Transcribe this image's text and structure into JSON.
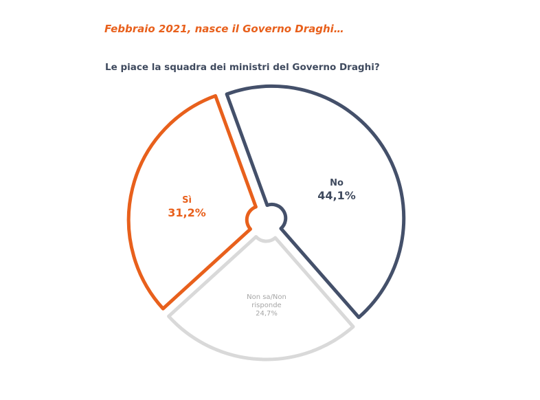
{
  "header": {
    "title": "Febbraio 2021, nasce il Governo Draghi…",
    "subtitle": "Le piace la squadra dei ministri del Governo Draghi?"
  },
  "chart_data": {
    "type": "pie",
    "title": "Le piace la squadra dei ministri del Governo Draghi?",
    "slices": [
      {
        "label": "No",
        "value": 44.1,
        "value_label": "44,1%",
        "color": "#44506a",
        "text_color": "#3f4a5e"
      },
      {
        "label": "Non sa/Non risponde",
        "value": 24.7,
        "value_label": "24,7%",
        "color": "#d9d9d9",
        "text_color": "#a6a6a6"
      },
      {
        "label": "Sì",
        "value": 31.2,
        "value_label": "31,2%",
        "color": "#e8601c",
        "text_color": "#e8601c"
      }
    ],
    "style": "exploded outlined donut"
  }
}
